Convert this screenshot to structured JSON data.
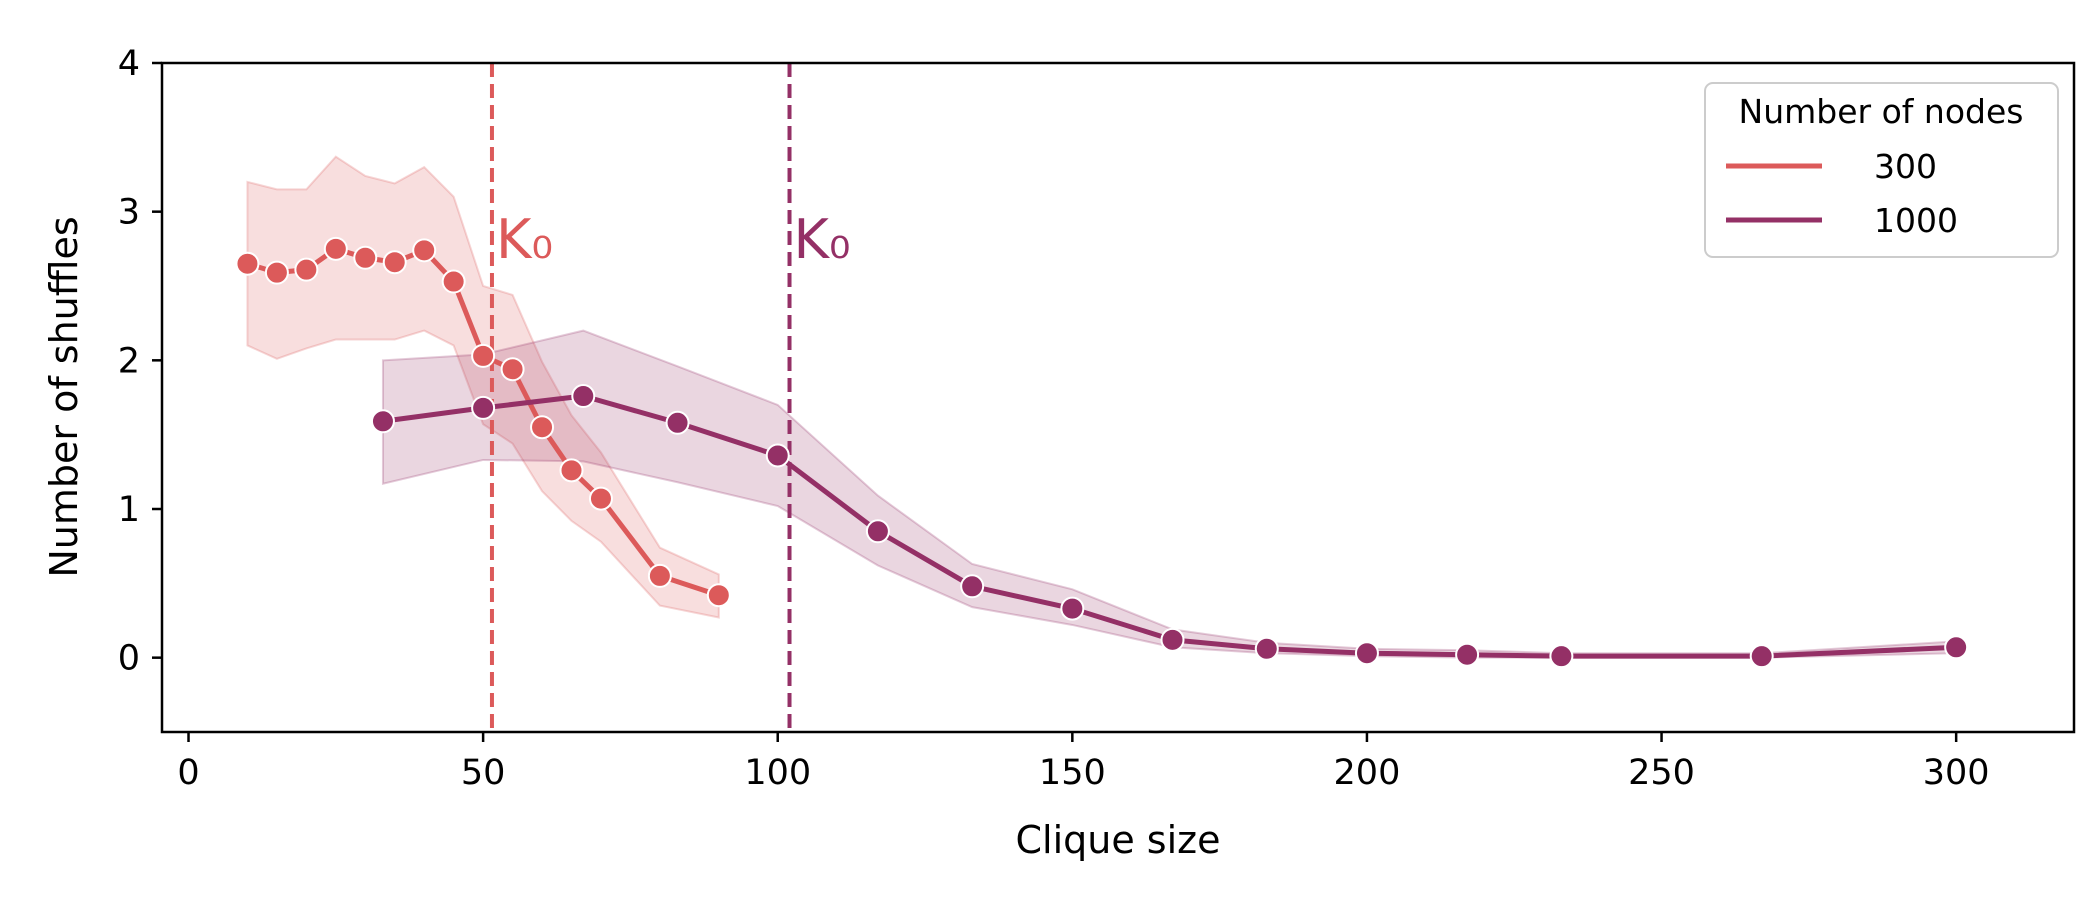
{
  "chart_data": {
    "type": "line",
    "xlabel": "Clique size",
    "ylabel": "Number of shuffles",
    "xlim": [
      -4.5,
      320
    ],
    "ylim": [
      -0.5,
      4
    ],
    "xticks": [
      0,
      50,
      100,
      150,
      200,
      250,
      300
    ],
    "yticks": [
      0,
      1,
      2,
      3,
      4
    ],
    "grid": false,
    "legend": {
      "title": "Number of nodes",
      "placement": "top-right"
    },
    "series": [
      {
        "name": "300",
        "color": "#dc5a5a",
        "marker": "circle",
        "x": [
          10,
          15,
          20,
          25,
          30,
          35,
          40,
          45,
          50,
          55,
          60,
          65,
          70,
          80,
          90
        ],
        "y": [
          2.65,
          2.59,
          2.61,
          2.75,
          2.69,
          2.66,
          2.74,
          2.53,
          2.03,
          1.94,
          1.55,
          1.26,
          1.07,
          0.55,
          0.42
        ],
        "ci_lower": [
          2.1,
          2.01,
          2.08,
          2.14,
          2.14,
          2.14,
          2.2,
          2.1,
          1.57,
          1.44,
          1.12,
          0.92,
          0.78,
          0.35,
          0.27
        ],
        "ci_upper": [
          3.2,
          3.15,
          3.15,
          3.37,
          3.24,
          3.19,
          3.3,
          3.1,
          2.5,
          2.44,
          1.99,
          1.63,
          1.38,
          0.74,
          0.56
        ]
      },
      {
        "name": "1000",
        "color": "#943066",
        "marker": "circle",
        "x": [
          33,
          50,
          67,
          83,
          100,
          117,
          133,
          150,
          167,
          183,
          200,
          217,
          233,
          267,
          300
        ],
        "y": [
          1.59,
          1.68,
          1.76,
          1.58,
          1.36,
          0.85,
          0.48,
          0.33,
          0.12,
          0.06,
          0.03,
          0.02,
          0.01,
          0.01,
          0.07
        ],
        "ci_lower": [
          1.17,
          1.33,
          1.32,
          1.18,
          1.02,
          0.62,
          0.34,
          0.22,
          0.07,
          0.03,
          0.01,
          0.0,
          0.0,
          0.0,
          0.03
        ],
        "ci_upper": [
          2.0,
          2.04,
          2.2,
          1.96,
          1.7,
          1.09,
          0.63,
          0.46,
          0.19,
          0.1,
          0.06,
          0.05,
          0.03,
          0.03,
          0.11
        ]
      }
    ],
    "vlines": [
      {
        "x": 51.5,
        "color": "#dc5a5a",
        "label": "K₀"
      },
      {
        "x": 102,
        "color": "#943066",
        "label": "K₀"
      }
    ]
  }
}
